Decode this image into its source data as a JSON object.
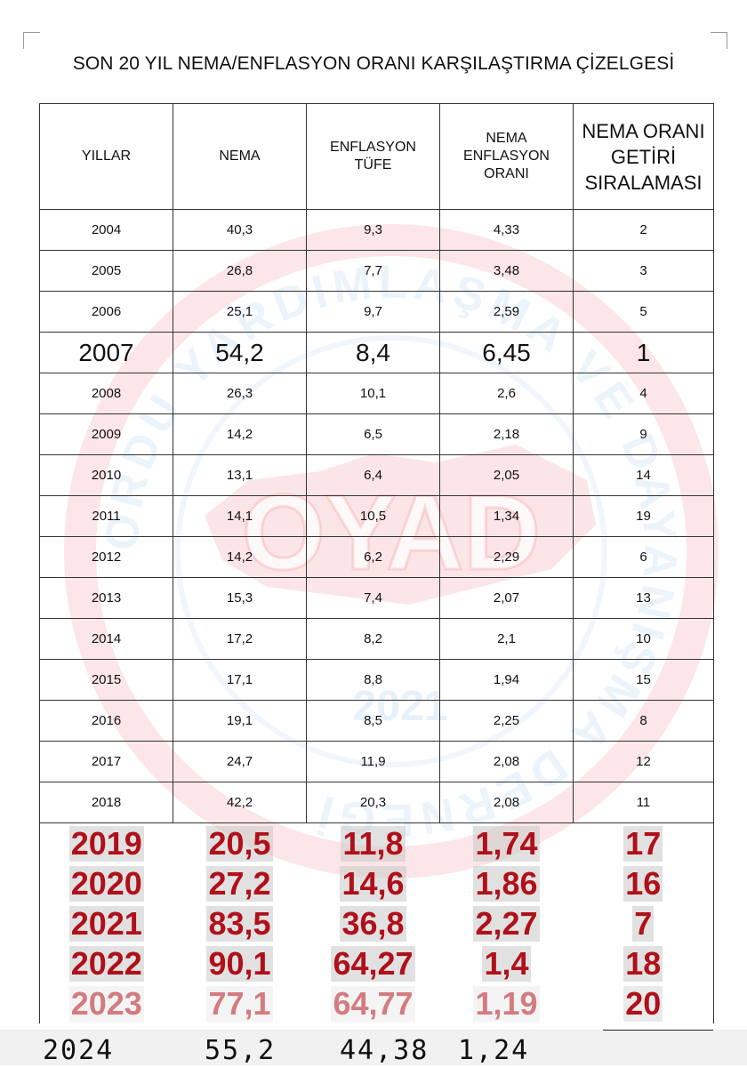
{
  "title": "SON 20 YIL NEMA/ENFLASYON ORANI KARŞILAŞTIRMA ÇİZELGESİ",
  "headers": [
    "YILLAR",
    "NEMA",
    "ENFLASYON TÜFE",
    "NEMA ENFLASYON ORANI",
    "NEMA ORANI GETİRİ SIRALAMASI"
  ],
  "rows": [
    {
      "year": "2004",
      "nema": "40,3",
      "tufe": "9,3",
      "oran": "4,33",
      "sira": "2"
    },
    {
      "year": "2005",
      "nema": "26,8",
      "tufe": "7,7",
      "oran": "3,48",
      "sira": "3"
    },
    {
      "year": "2006",
      "nema": "25,1",
      "tufe": "9,7",
      "oran": "2,59",
      "sira": "5"
    },
    {
      "year": "2007",
      "nema": "54,2",
      "tufe": "8,4",
      "oran": "6,45",
      "sira": "1"
    },
    {
      "year": "2008",
      "nema": "26,3",
      "tufe": "10,1",
      "oran": "2,6",
      "sira": "4"
    },
    {
      "year": "2009",
      "nema": "14,2",
      "tufe": "6,5",
      "oran": "2,18",
      "sira": "9"
    },
    {
      "year": "2010",
      "nema": "13,1",
      "tufe": "6,4",
      "oran": "2,05",
      "sira": "14"
    },
    {
      "year": "2011",
      "nema": "14,1",
      "tufe": "10,5",
      "oran": "1,34",
      "sira": "19"
    },
    {
      "year": "2012",
      "nema": "14,2",
      "tufe": "6,2",
      "oran": "2,29",
      "sira": "6"
    },
    {
      "year": "2013",
      "nema": "15,3",
      "tufe": "7,4",
      "oran": "2,07",
      "sira": "13"
    },
    {
      "year": "2014",
      "nema": "17,2",
      "tufe": "8,2",
      "oran": "2,1",
      "sira": "10"
    },
    {
      "year": "2015",
      "nema": "17,1",
      "tufe": "8,8",
      "oran": "1,94",
      "sira": "15"
    },
    {
      "year": "2016",
      "nema": "19,1",
      "tufe": "8,5",
      "oran": "2,25",
      "sira": "8"
    },
    {
      "year": "2017",
      "nema": "24,7",
      "tufe": "11,9",
      "oran": "2,08",
      "sira": "12"
    },
    {
      "year": "2018",
      "nema": "42,2",
      "tufe": "20,3",
      "oran": "2,08",
      "sira": "11"
    },
    {
      "year": "2019",
      "nema": "20,5",
      "tufe": "11,8",
      "oran": "1,74",
      "sira": "17"
    },
    {
      "year": "2020",
      "nema": "27,2",
      "tufe": "14,6",
      "oran": "1,86",
      "sira": "16"
    },
    {
      "year": "2021",
      "nema": "83,5",
      "tufe": "36,8",
      "oran": "2,27",
      "sira": "7"
    },
    {
      "year": "2022",
      "nema": "90,1",
      "tufe": "64,27",
      "oran": "1,4",
      "sira": "18"
    },
    {
      "year": "2023",
      "nema": "77,1",
      "tufe": "64,77",
      "oran": "1,19",
      "sira": "20"
    }
  ],
  "extra_row": {
    "year": "2024",
    "nema": "55,2",
    "tufe": "44,38",
    "oran": "1,24"
  },
  "watermark": {
    "logo": "OYAD",
    "year": "2021",
    "ring_text": "ORDU YARDIMLAŞMA VE DAYANIŞMA DERNEĞİ"
  },
  "colors": {
    "red_rows": "#b0101a",
    "watermark_red": "#e8343c",
    "watermark_blue": "#3b8fd6"
  }
}
